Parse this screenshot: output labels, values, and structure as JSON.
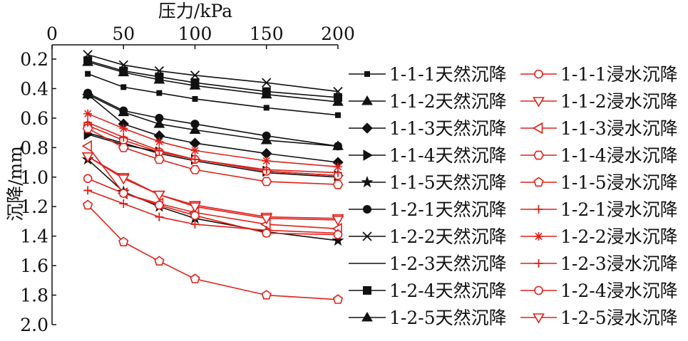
{
  "colors": {
    "natural": "#111111",
    "soaked": "#e0201b",
    "axis": "#111111"
  },
  "chart_data": {
    "type": "line",
    "xlabel": "压力/kPa",
    "ylabel": "沉降/mm",
    "x_axis_position": "top",
    "y_reversed": true,
    "xlim": [
      0,
      200
    ],
    "ylim": [
      0.1,
      2.0
    ],
    "x_ticks": [
      "0",
      "50",
      "100",
      "150",
      "200"
    ],
    "y_ticks": [
      "0.2",
      "0.4",
      "0.6",
      "0.8",
      "1.0",
      "1.2",
      "1.4",
      "1.6",
      "1.8",
      "2.0"
    ],
    "grid": false,
    "legend_position": "right, two columns",
    "x": [
      25,
      50,
      75,
      100,
      150,
      200
    ],
    "series": [
      {
        "name": "1-1-1天然沉降",
        "color": "#111111",
        "marker": "small-square",
        "values": [
          0.3,
          0.39,
          0.43,
          0.47,
          0.53,
          0.58
        ]
      },
      {
        "name": "1-1-2天然沉降",
        "color": "#111111",
        "marker": "triangle-up",
        "values": [
          0.22,
          0.29,
          0.34,
          0.38,
          0.44,
          0.49
        ]
      },
      {
        "name": "1-1-3天然沉降",
        "color": "#111111",
        "marker": "diamond",
        "values": [
          0.44,
          0.64,
          0.72,
          0.77,
          0.84,
          0.9
        ]
      },
      {
        "name": "1-1-4天然沉降",
        "color": "#111111",
        "marker": "triangle-right",
        "values": [
          0.71,
          0.78,
          0.83,
          0.88,
          0.96,
          0.99
        ]
      },
      {
        "name": "1-1-5天然沉降",
        "color": "#111111",
        "marker": "star",
        "values": [
          0.88,
          1.1,
          1.2,
          1.28,
          1.37,
          1.43
        ]
      },
      {
        "name": "1-2-1天然沉降",
        "color": "#111111",
        "marker": "circle",
        "values": [
          0.43,
          0.55,
          0.6,
          0.64,
          0.72,
          0.79
        ]
      },
      {
        "name": "1-2-2天然沉降",
        "color": "#111111",
        "marker": "x",
        "values": [
          0.17,
          0.24,
          0.28,
          0.31,
          0.36,
          0.42
        ]
      },
      {
        "name": "1-2-3天然沉降",
        "color": "#111111",
        "marker": "none",
        "values": [
          0.7,
          0.77,
          0.84,
          0.89,
          0.97,
          1.0
        ]
      },
      {
        "name": "1-2-4天然沉降",
        "color": "#111111",
        "marker": "square",
        "values": [
          0.21,
          0.28,
          0.32,
          0.36,
          0.42,
          0.46
        ]
      },
      {
        "name": "1-2-5天然沉降",
        "color": "#111111",
        "marker": "triangle-up",
        "values": [
          0.44,
          0.56,
          0.64,
          0.68,
          0.75,
          0.79
        ]
      },
      {
        "name": "1-1-1浸水沉降",
        "color": "#e0201b",
        "marker": "circle-open",
        "values": [
          0.65,
          0.75,
          0.83,
          0.88,
          0.96,
          0.99
        ]
      },
      {
        "name": "1-1-2浸水沉降",
        "color": "#e0201b",
        "marker": "triangle-down-open",
        "values": [
          0.86,
          1.0,
          1.12,
          1.19,
          1.27,
          1.28
        ]
      },
      {
        "name": "1-1-3浸水沉降",
        "color": "#e0201b",
        "marker": "triangle-left-open",
        "values": [
          0.79,
          1.11,
          1.18,
          1.24,
          1.32,
          1.35
        ]
      },
      {
        "name": "1-1-4浸水沉降",
        "color": "#e0201b",
        "marker": "hexagon-open",
        "values": [
          0.67,
          0.8,
          0.88,
          0.95,
          1.03,
          1.05
        ]
      },
      {
        "name": "1-1-5浸水沉降",
        "color": "#e0201b",
        "marker": "pentagon-open",
        "values": [
          1.19,
          1.44,
          1.57,
          1.69,
          1.8,
          1.83
        ]
      },
      {
        "name": "1-2-1浸水沉降",
        "color": "#e0201b",
        "marker": "plus",
        "values": [
          1.09,
          1.18,
          1.27,
          1.32,
          1.36,
          1.38
        ]
      },
      {
        "name": "1-2-2浸水沉降",
        "color": "#e0201b",
        "marker": "asterisk",
        "values": [
          0.57,
          0.67,
          0.76,
          0.82,
          0.89,
          0.93
        ]
      },
      {
        "name": "1-2-3浸水沉降",
        "color": "#e0201b",
        "marker": "plus",
        "values": [
          0.63,
          0.73,
          0.82,
          0.88,
          0.95,
          0.97
        ]
      },
      {
        "name": "1-2-4浸水沉降",
        "color": "#e0201b",
        "marker": "circle-open",
        "values": [
          1.01,
          1.11,
          1.19,
          1.26,
          1.38,
          1.39
        ]
      },
      {
        "name": "1-2-5浸水沉降",
        "color": "#e0201b",
        "marker": "triangle-down-open",
        "values": [
          0.86,
          1.01,
          1.12,
          1.2,
          1.28,
          1.29
        ]
      }
    ]
  }
}
